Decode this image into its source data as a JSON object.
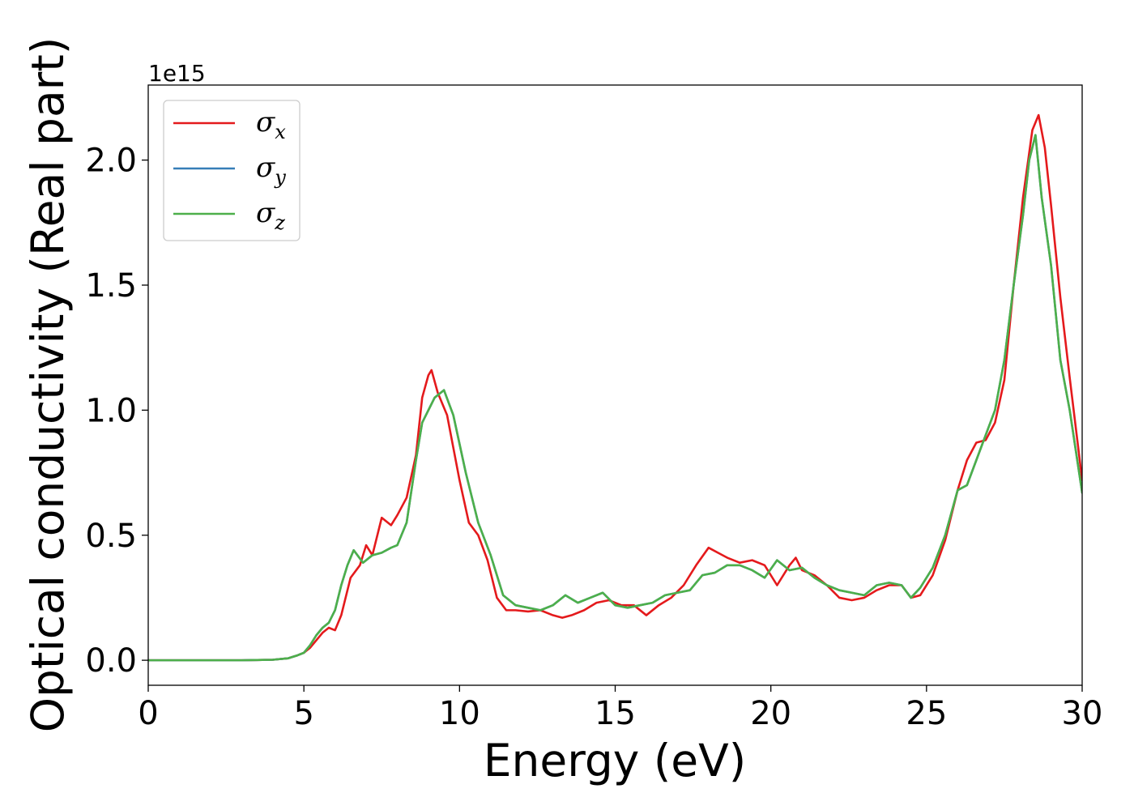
{
  "chart_data": {
    "type": "line",
    "title": "",
    "xlabel": "Energy (eV)",
    "ylabel": "Optical conductivity (Real part)",
    "y_offset_text": "1e15",
    "y_scale": 1000000000000000.0,
    "xlim": [
      0,
      30
    ],
    "ylim": [
      -0.1,
      2.3
    ],
    "x_ticks": [
      0,
      5,
      10,
      15,
      20,
      25,
      30
    ],
    "x_tick_labels": [
      "0",
      "5",
      "10",
      "15",
      "20",
      "25",
      "30"
    ],
    "y_ticks": [
      0.0,
      0.5,
      1.0,
      1.5,
      2.0
    ],
    "y_tick_labels": [
      "0.0",
      "0.5",
      "1.0",
      "1.5",
      "2.0"
    ],
    "grid": false,
    "legend_position": "top-left",
    "series": [
      {
        "name": "σx",
        "symbol": "σ",
        "subscript": "x",
        "color": "#e41a1c",
        "x": [
          0,
          1,
          2,
          3,
          3.5,
          4,
          4.5,
          4.8,
          5.0,
          5.2,
          5.4,
          5.6,
          5.8,
          6.0,
          6.2,
          6.5,
          6.8,
          7.0,
          7.2,
          7.5,
          7.8,
          8.0,
          8.3,
          8.6,
          8.8,
          9.0,
          9.1,
          9.3,
          9.6,
          10.0,
          10.3,
          10.6,
          10.9,
          11.2,
          11.5,
          11.8,
          12.2,
          12.6,
          13.0,
          13.3,
          13.6,
          14.0,
          14.4,
          14.8,
          15.2,
          15.6,
          16.0,
          16.4,
          16.8,
          17.2,
          17.6,
          18.0,
          18.3,
          18.6,
          19.0,
          19.4,
          19.8,
          20.2,
          20.6,
          20.8,
          21.0,
          21.4,
          21.8,
          22.2,
          22.6,
          23.0,
          23.4,
          23.8,
          24.2,
          24.5,
          24.8,
          25.2,
          25.6,
          26.0,
          26.3,
          26.6,
          26.9,
          27.2,
          27.5,
          27.8,
          28.1,
          28.4,
          28.6,
          28.8,
          29.0,
          29.3,
          29.6,
          30.0
        ],
        "y": [
          0.0,
          0.0,
          0.0,
          0.0,
          0.001,
          0.002,
          0.008,
          0.02,
          0.03,
          0.05,
          0.08,
          0.11,
          0.13,
          0.12,
          0.18,
          0.33,
          0.38,
          0.46,
          0.42,
          0.57,
          0.54,
          0.58,
          0.65,
          0.82,
          1.05,
          1.14,
          1.16,
          1.07,
          0.98,
          0.72,
          0.55,
          0.5,
          0.4,
          0.25,
          0.2,
          0.2,
          0.195,
          0.2,
          0.18,
          0.17,
          0.18,
          0.2,
          0.23,
          0.24,
          0.22,
          0.22,
          0.18,
          0.22,
          0.25,
          0.3,
          0.38,
          0.45,
          0.43,
          0.41,
          0.39,
          0.4,
          0.38,
          0.3,
          0.38,
          0.41,
          0.36,
          0.34,
          0.3,
          0.25,
          0.24,
          0.25,
          0.28,
          0.3,
          0.3,
          0.25,
          0.26,
          0.34,
          0.48,
          0.68,
          0.8,
          0.87,
          0.88,
          0.95,
          1.12,
          1.5,
          1.85,
          2.12,
          2.18,
          2.05,
          1.82,
          1.45,
          1.13,
          0.72
        ]
      },
      {
        "name": "σy",
        "symbol": "σ",
        "subscript": "y",
        "color": "#377eb8",
        "x": [
          0,
          1,
          2,
          3,
          3.5,
          4,
          4.5,
          4.8,
          5.0,
          5.2,
          5.4,
          5.6,
          5.8,
          6.0,
          6.2,
          6.4,
          6.6,
          6.9,
          7.2,
          7.5,
          7.8,
          8.0,
          8.3,
          8.6,
          8.8,
          9.0,
          9.2,
          9.5,
          9.8,
          10.2,
          10.6,
          11.0,
          11.4,
          11.8,
          12.2,
          12.6,
          13.0,
          13.4,
          13.8,
          14.2,
          14.6,
          15.0,
          15.4,
          15.8,
          16.2,
          16.6,
          17.0,
          17.4,
          17.8,
          18.2,
          18.6,
          19.0,
          19.4,
          19.8,
          20.2,
          20.6,
          21.0,
          21.4,
          21.8,
          22.2,
          22.6,
          23.0,
          23.4,
          23.8,
          24.2,
          24.5,
          24.8,
          25.2,
          25.6,
          26.0,
          26.3,
          26.6,
          26.9,
          27.2,
          27.5,
          27.8,
          28.1,
          28.3,
          28.5,
          28.7,
          29.0,
          29.3,
          29.6,
          30.0
        ],
        "y": [
          0.0,
          0.0,
          0.0,
          0.0,
          0.001,
          0.002,
          0.008,
          0.02,
          0.03,
          0.06,
          0.1,
          0.13,
          0.15,
          0.2,
          0.3,
          0.38,
          0.44,
          0.39,
          0.42,
          0.43,
          0.45,
          0.46,
          0.55,
          0.8,
          0.95,
          1.0,
          1.05,
          1.08,
          0.98,
          0.75,
          0.55,
          0.42,
          0.26,
          0.22,
          0.21,
          0.2,
          0.22,
          0.26,
          0.23,
          0.25,
          0.27,
          0.22,
          0.21,
          0.22,
          0.23,
          0.26,
          0.27,
          0.28,
          0.34,
          0.35,
          0.38,
          0.38,
          0.36,
          0.33,
          0.4,
          0.36,
          0.37,
          0.33,
          0.3,
          0.28,
          0.27,
          0.26,
          0.3,
          0.31,
          0.3,
          0.25,
          0.29,
          0.37,
          0.5,
          0.68,
          0.7,
          0.8,
          0.9,
          1.0,
          1.2,
          1.5,
          1.78,
          2.0,
          2.1,
          1.85,
          1.58,
          1.2,
          1.0,
          0.67
        ]
      },
      {
        "name": "σz",
        "symbol": "σ",
        "subscript": "z",
        "color": "#4daf4a",
        "x": [
          0,
          1,
          2,
          3,
          3.5,
          4,
          4.5,
          4.8,
          5.0,
          5.2,
          5.4,
          5.6,
          5.8,
          6.0,
          6.2,
          6.4,
          6.6,
          6.9,
          7.2,
          7.5,
          7.8,
          8.0,
          8.3,
          8.6,
          8.8,
          9.0,
          9.2,
          9.5,
          9.8,
          10.2,
          10.6,
          11.0,
          11.4,
          11.8,
          12.2,
          12.6,
          13.0,
          13.4,
          13.8,
          14.2,
          14.6,
          15.0,
          15.4,
          15.8,
          16.2,
          16.6,
          17.0,
          17.4,
          17.8,
          18.2,
          18.6,
          19.0,
          19.4,
          19.8,
          20.2,
          20.6,
          21.0,
          21.4,
          21.8,
          22.2,
          22.6,
          23.0,
          23.4,
          23.8,
          24.2,
          24.5,
          24.8,
          25.2,
          25.6,
          26.0,
          26.3,
          26.6,
          26.9,
          27.2,
          27.5,
          27.8,
          28.1,
          28.3,
          28.5,
          28.7,
          29.0,
          29.3,
          29.6,
          30.0
        ],
        "y": [
          0.0,
          0.0,
          0.0,
          0.0,
          0.001,
          0.002,
          0.008,
          0.02,
          0.03,
          0.06,
          0.1,
          0.13,
          0.15,
          0.2,
          0.3,
          0.38,
          0.44,
          0.39,
          0.42,
          0.43,
          0.45,
          0.46,
          0.55,
          0.8,
          0.95,
          1.0,
          1.05,
          1.08,
          0.98,
          0.75,
          0.55,
          0.42,
          0.26,
          0.22,
          0.21,
          0.2,
          0.22,
          0.26,
          0.23,
          0.25,
          0.27,
          0.22,
          0.21,
          0.22,
          0.23,
          0.26,
          0.27,
          0.28,
          0.34,
          0.35,
          0.38,
          0.38,
          0.36,
          0.33,
          0.4,
          0.36,
          0.37,
          0.33,
          0.3,
          0.28,
          0.27,
          0.26,
          0.3,
          0.31,
          0.3,
          0.25,
          0.29,
          0.37,
          0.5,
          0.68,
          0.7,
          0.8,
          0.9,
          1.0,
          1.2,
          1.5,
          1.78,
          2.0,
          2.1,
          1.85,
          1.58,
          1.2,
          1.0,
          0.67
        ]
      }
    ]
  }
}
